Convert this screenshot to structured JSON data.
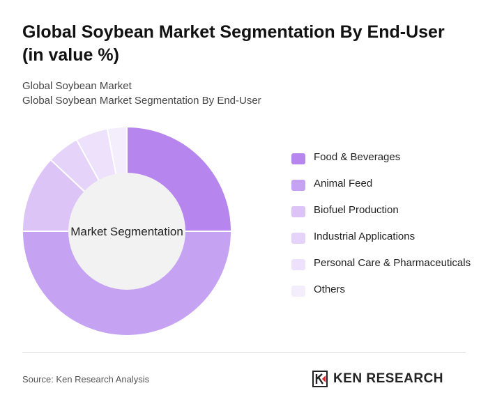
{
  "title": "Global Soybean Market Segmentation By End-User (in value %)",
  "subtitle_line1": "Global Soybean Market",
  "subtitle_line2": "Global Soybean Market Segmentation By End-User",
  "chart_data": {
    "type": "pie",
    "center_label": "Market Segmentation",
    "legend_position": "right",
    "categories": [
      "Food & Beverages",
      "Animal Feed",
      "Biofuel Production",
      "Industrial Applications",
      "Personal Care & Pharmaceuticals",
      "Others"
    ],
    "values": [
      25,
      50,
      12,
      5,
      5,
      3
    ],
    "colors": [
      "#b685ee",
      "#c6a2f2",
      "#dcc4f7",
      "#e5d3f9",
      "#ede1fb",
      "#f4eefc"
    ]
  },
  "footer": {
    "source": "Source: Ken Research Analysis",
    "logo_text": "KEN RESEARCH"
  }
}
